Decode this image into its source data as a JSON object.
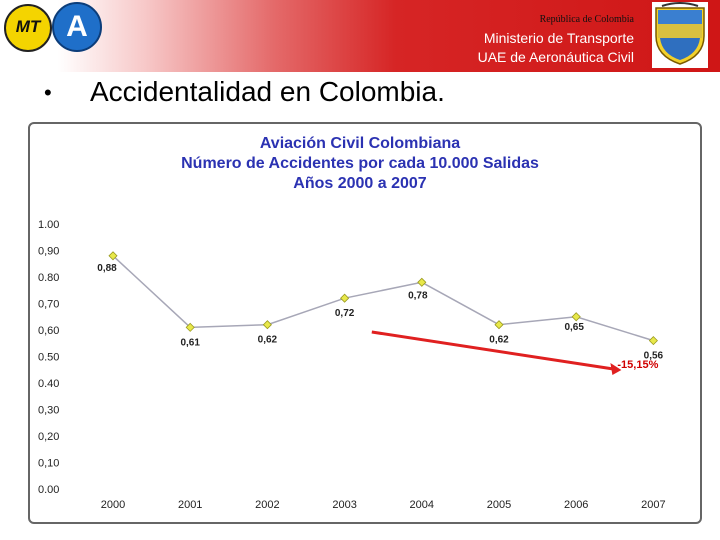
{
  "header": {
    "republic": "República de Colombia",
    "ministry": "Ministerio de Transporte",
    "agency": "UAE de Aeronáutica Civil",
    "logo_mt_text": "MT",
    "logo_a_text": "A"
  },
  "slide": {
    "bullet": "•",
    "title": "Accidentalidad en Colombia."
  },
  "colors": {
    "title_blue": "#2b32b2",
    "line": "#a7a7b7",
    "marker": "#e8e84a",
    "trend_arrow": "#e02020",
    "trend_label": "#d00000",
    "header_red": "#cf1616"
  },
  "chart_data": {
    "type": "line",
    "title": "Aviación Civil Colombiana",
    "subtitle": "Número de Accidentes por cada 10.000 Salidas",
    "subtitle2": "Años 2000 a 2007",
    "categories": [
      "2000",
      "2001",
      "2002",
      "2003",
      "2004",
      "2005",
      "2006",
      "2007"
    ],
    "values": [
      0.88,
      0.61,
      0.62,
      0.72,
      0.78,
      0.62,
      0.65,
      0.56
    ],
    "value_labels": [
      "0,88",
      "0,61",
      "0,62",
      "0,72",
      "0,78",
      "0,62",
      "0,65",
      "0,56"
    ],
    "y_ticks": [
      "0.00",
      "0,10",
      "0,20",
      "0,30",
      "0.40",
      "0.50",
      "0,60",
      "0,70",
      "0.80",
      "0,90",
      "1.00"
    ],
    "ylim": [
      0,
      1.0
    ],
    "grid": false,
    "legend": "none",
    "annotation": {
      "text": "-15,15%",
      "from_category": "2004",
      "to_category": "2007"
    }
  }
}
